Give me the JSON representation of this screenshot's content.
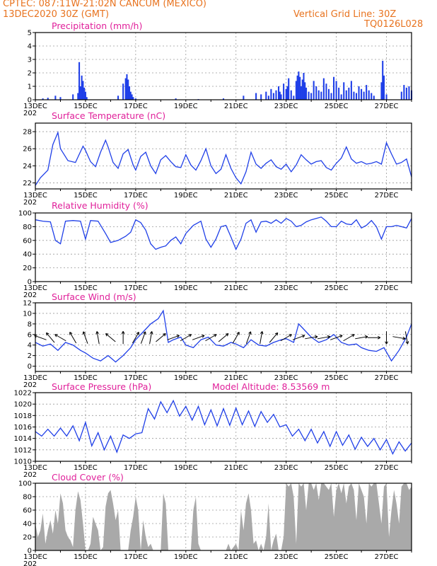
{
  "header": {
    "line1": "CPTEC:   087:11W-21:02N   CANCUM (MEXICO)",
    "line2": "13DEC2020 30Z (GMT)",
    "grid_note": "Vertical Grid Line: 30Z",
    "code": "TQ0126L028"
  },
  "colors": {
    "header_text": "#e8731f",
    "title_text": "#e0209a",
    "line_series": "#1f3fe8",
    "precip_bars": "#1f3fe8",
    "cloud_bars": "#a9a9a9",
    "grid": "#9a9a9a"
  },
  "x_axis": {
    "tick_labels": [
      "13DEC",
      "15DEC",
      "17DEC",
      "19DEC",
      "21DEC",
      "23DEC",
      "25DEC",
      "27DEC"
    ],
    "partial_year_label": "202",
    "start_day": 13,
    "end_day": 28
  },
  "chart_data": [
    {
      "id": "precip",
      "type": "bar",
      "title": "Precipitation (mm/h)",
      "ylim": [
        0,
        5
      ],
      "yticks": [
        0,
        1,
        2,
        3,
        4,
        5
      ],
      "grid": true,
      "x_unit": "day of December 2020",
      "x": [
        13.3,
        13.5,
        13.8,
        14.0,
        14.5,
        14.7,
        14.75,
        14.8,
        14.85,
        14.9,
        14.95,
        15.0,
        15.05,
        16.3,
        16.5,
        16.6,
        16.65,
        16.7,
        16.75,
        16.8,
        16.85,
        16.9,
        17.0,
        18.6,
        19.5,
        20.5,
        21.3,
        21.8,
        22.0,
        22.2,
        22.3,
        22.4,
        22.5,
        22.6,
        22.7,
        22.75,
        22.8,
        22.9,
        23.0,
        23.05,
        23.1,
        23.2,
        23.3,
        23.4,
        23.45,
        23.5,
        23.55,
        23.6,
        23.65,
        23.7,
        23.75,
        23.8,
        23.9,
        24.0,
        24.1,
        24.2,
        24.3,
        24.4,
        24.5,
        24.6,
        24.7,
        24.8,
        24.9,
        25.0,
        25.1,
        25.2,
        25.3,
        25.4,
        25.5,
        25.6,
        25.7,
        25.8,
        25.9,
        26.0,
        26.1,
        26.2,
        26.3,
        26.4,
        26.5,
        26.8,
        26.85,
        26.9,
        27.0,
        27.6,
        27.7,
        27.8,
        27.9,
        28.0
      ],
      "values": [
        0.1,
        0.15,
        0.3,
        0.2,
        0.4,
        0.5,
        2.8,
        1.0,
        1.8,
        1.4,
        0.9,
        0.6,
        0.2,
        0.3,
        1.2,
        1.6,
        1.9,
        1.5,
        1.0,
        0.6,
        0.4,
        0.2,
        0.1,
        0.1,
        0.05,
        0.1,
        0.3,
        0.5,
        0.4,
        0.6,
        0.3,
        0.8,
        0.5,
        0.7,
        1.0,
        0.6,
        0.4,
        1.2,
        0.8,
        1.0,
        1.6,
        0.7,
        0.3,
        1.4,
        1.8,
        2.1,
        1.7,
        1.0,
        1.5,
        2.0,
        1.3,
        0.9,
        0.6,
        0.5,
        1.4,
        1.0,
        0.7,
        0.6,
        1.6,
        1.2,
        0.8,
        0.5,
        1.7,
        1.4,
        0.9,
        0.4,
        1.3,
        0.7,
        0.9,
        1.4,
        0.6,
        0.5,
        1.0,
        0.8,
        0.6,
        1.1,
        0.7,
        0.5,
        0.3,
        1.3,
        2.9,
        1.8,
        0.4,
        0.6,
        1.1,
        0.9,
        1.0,
        0.7
      ]
    },
    {
      "id": "temp",
      "type": "line",
      "title": "Surface Temperature (nC)",
      "ylim": [
        21.3,
        29
      ],
      "yticks": [
        22,
        24,
        26,
        28
      ],
      "grid": true,
      "x_unit": "day of December 2020",
      "x": [
        13.0,
        13.2,
        13.5,
        13.7,
        13.9,
        14.0,
        14.3,
        14.6,
        14.9,
        15.0,
        15.2,
        15.4,
        15.6,
        15.8,
        15.9,
        16.1,
        16.3,
        16.5,
        16.7,
        16.9,
        17.0,
        17.2,
        17.4,
        17.6,
        17.8,
        18.0,
        18.2,
        18.4,
        18.6,
        18.8,
        19.0,
        19.2,
        19.4,
        19.6,
        19.8,
        20.0,
        20.2,
        20.4,
        20.6,
        20.8,
        21.0,
        21.2,
        21.4,
        21.6,
        21.8,
        22.0,
        22.2,
        22.4,
        22.6,
        22.8,
        23.0,
        23.2,
        23.4,
        23.6,
        23.8,
        24.0,
        24.2,
        24.4,
        24.6,
        24.8,
        25.0,
        25.2,
        25.4,
        25.6,
        25.8,
        26.0,
        26.2,
        26.4,
        26.6,
        26.8,
        27.0,
        27.2,
        27.4,
        27.6,
        27.8,
        28.0
      ],
      "values": [
        21.7,
        22.6,
        23.5,
        26.5,
        27.9,
        26.0,
        24.6,
        24.4,
        26.3,
        25.8,
        24.5,
        23.9,
        25.6,
        27.0,
        26.2,
        24.4,
        23.7,
        25.4,
        25.9,
        24.1,
        23.5,
        25.1,
        25.6,
        24.0,
        23.1,
        24.7,
        25.2,
        24.5,
        23.9,
        23.8,
        25.3,
        24.1,
        23.5,
        24.6,
        26.0,
        24.0,
        23.1,
        23.6,
        25.3,
        23.7,
        22.6,
        21.9,
        23.3,
        25.6,
        24.2,
        23.7,
        24.3,
        24.7,
        23.9,
        23.6,
        24.2,
        23.3,
        24.1,
        25.3,
        24.7,
        24.2,
        24.5,
        24.6,
        23.8,
        23.5,
        24.3,
        24.9,
        26.2,
        24.8,
        24.3,
        24.5,
        24.2,
        24.3,
        24.5,
        24.2,
        26.7,
        25.4,
        24.2,
        24.4,
        24.8,
        22.7
      ]
    },
    {
      "id": "rh",
      "type": "line",
      "title": "Relative Humidity (%)",
      "ylim": [
        0,
        100
      ],
      "yticks": [
        0,
        20,
        40,
        60,
        80,
        100
      ],
      "grid": true,
      "x_unit": "day of December 2020",
      "x": [
        13.0,
        13.3,
        13.6,
        13.8,
        14.0,
        14.2,
        14.5,
        14.8,
        15.0,
        15.2,
        15.5,
        15.8,
        16.0,
        16.3,
        16.6,
        16.8,
        17.0,
        17.2,
        17.4,
        17.6,
        17.8,
        18.0,
        18.2,
        18.4,
        18.6,
        18.8,
        19.0,
        19.3,
        19.6,
        19.8,
        20.0,
        20.2,
        20.4,
        20.6,
        20.8,
        21.0,
        21.2,
        21.4,
        21.6,
        21.8,
        22.0,
        22.2,
        22.4,
        22.6,
        22.8,
        23.0,
        23.2,
        23.4,
        23.6,
        23.8,
        24.0,
        24.2,
        24.4,
        24.6,
        24.8,
        25.0,
        25.2,
        25.4,
        25.6,
        25.8,
        26.0,
        26.2,
        26.4,
        26.6,
        26.8,
        27.0,
        27.2,
        27.4,
        27.6,
        27.8,
        28.0
      ],
      "values": [
        90,
        88,
        87,
        60,
        55,
        88,
        89,
        88,
        62,
        89,
        88,
        70,
        57,
        60,
        66,
        72,
        90,
        86,
        75,
        55,
        47,
        50,
        52,
        60,
        65,
        55,
        70,
        82,
        88,
        62,
        50,
        62,
        80,
        82,
        65,
        47,
        62,
        85,
        90,
        72,
        87,
        88,
        85,
        90,
        85,
        92,
        88,
        80,
        82,
        87,
        90,
        92,
        94,
        88,
        80,
        80,
        88,
        84,
        83,
        90,
        78,
        82,
        89,
        80,
        62,
        80,
        80,
        82,
        80,
        78,
        92
      ]
    },
    {
      "id": "wind",
      "type": "line",
      "title": "Surface Wind (m/s)",
      "ylim": [
        -1,
        12
      ],
      "yticks": [
        0,
        2,
        4,
        6,
        8,
        10,
        12
      ],
      "grid": true,
      "x_unit": "day of December 2020",
      "x": [
        13.0,
        13.3,
        13.6,
        13.9,
        14.2,
        14.5,
        14.8,
        15.0,
        15.3,
        15.6,
        15.9,
        16.2,
        16.5,
        16.8,
        17.0,
        17.3,
        17.6,
        17.9,
        18.1,
        18.3,
        18.5,
        18.8,
        19.0,
        19.3,
        19.6,
        19.9,
        20.2,
        20.5,
        20.8,
        21.0,
        21.3,
        21.6,
        21.9,
        22.2,
        22.5,
        22.8,
        23.0,
        23.3,
        23.5,
        23.8,
        24.0,
        24.3,
        24.6,
        24.9,
        25.2,
        25.5,
        25.8,
        26.0,
        26.3,
        26.6,
        26.9,
        27.2,
        27.5,
        27.8,
        28.0
      ],
      "values": [
        4.5,
        3.8,
        4.2,
        3.0,
        4.5,
        4.0,
        3.0,
        2.5,
        1.5,
        1.0,
        2.0,
        0.8,
        2.0,
        3.5,
        5.0,
        6.5,
        8.0,
        9.0,
        10.5,
        4.5,
        5.0,
        5.5,
        4.0,
        3.5,
        5.0,
        5.5,
        4.0,
        3.8,
        4.5,
        4.2,
        3.5,
        5.0,
        4.0,
        3.8,
        4.5,
        5.0,
        5.2,
        4.5,
        8.0,
        6.5,
        5.5,
        4.5,
        5.0,
        6.0,
        4.5,
        4.0,
        4.2,
        3.5,
        3.0,
        2.8,
        3.5,
        1.0,
        3.0,
        5.5,
        8.0
      ],
      "barbs": {
        "x": [
          13.2,
          13.6,
          14.0,
          14.5,
          15.0,
          15.5,
          16.0,
          16.5,
          17.0,
          17.3,
          17.6,
          18.0,
          18.5,
          19.0,
          19.5,
          20.0,
          20.5,
          21.0,
          21.5,
          22.0,
          22.5,
          23.0,
          23.5,
          24.0,
          24.5,
          25.0,
          25.5,
          26.0,
          26.5,
          27.0,
          27.5,
          27.8
        ],
        "angle_deg": [
          160,
          130,
          150,
          120,
          110,
          100,
          140,
          90,
          60,
          70,
          80,
          40,
          20,
          30,
          20,
          30,
          40,
          60,
          70,
          80,
          50,
          30,
          20,
          10,
          10,
          20,
          30,
          10,
          0,
          -90,
          -10,
          -80
        ]
      }
    },
    {
      "id": "pres",
      "type": "line",
      "title": "Surface Pressure (hPa)",
      "annotation": "Model Altitude: 8.53569 m",
      "ylim": [
        1010,
        1022
      ],
      "yticks": [
        1010,
        1012,
        1014,
        1016,
        1018,
        1020,
        1022
      ],
      "grid": true,
      "x_unit": "day of December 2020",
      "x": [
        13.0,
        13.25,
        13.5,
        13.75,
        14.0,
        14.25,
        14.5,
        14.75,
        15.0,
        15.25,
        15.5,
        15.75,
        16.0,
        16.25,
        16.5,
        16.75,
        17.0,
        17.25,
        17.5,
        17.75,
        18.0,
        18.25,
        18.5,
        18.75,
        19.0,
        19.25,
        19.5,
        19.75,
        20.0,
        20.25,
        20.5,
        20.75,
        21.0,
        21.25,
        21.5,
        21.75,
        22.0,
        22.25,
        22.5,
        22.75,
        23.0,
        23.25,
        23.5,
        23.75,
        24.0,
        24.25,
        24.5,
        24.75,
        25.0,
        25.25,
        25.5,
        25.75,
        26.0,
        26.25,
        26.5,
        26.75,
        27.0,
        27.25,
        27.5,
        27.75,
        28.0
      ],
      "values": [
        1015.2,
        1014.4,
        1015.6,
        1014.4,
        1015.8,
        1014.4,
        1016.2,
        1013.6,
        1016.8,
        1012.7,
        1015.0,
        1012.0,
        1014.4,
        1011.6,
        1014.6,
        1014.0,
        1014.8,
        1015.0,
        1019.2,
        1017.4,
        1020.4,
        1018.5,
        1020.6,
        1017.9,
        1019.6,
        1017.2,
        1019.6,
        1016.4,
        1019.0,
        1016.2,
        1019.2,
        1016.3,
        1019.3,
        1016.4,
        1018.8,
        1016.1,
        1018.7,
        1016.8,
        1018.2,
        1016.0,
        1016.4,
        1014.4,
        1015.6,
        1013.6,
        1015.6,
        1013.2,
        1015.2,
        1012.6,
        1015.2,
        1012.8,
        1014.6,
        1012.1,
        1014.2,
        1012.6,
        1014.0,
        1012.0,
        1013.8,
        1011.3,
        1013.4,
        1011.8,
        1013.2
      ]
    },
    {
      "id": "cloud",
      "type": "area",
      "title": "Cloud Cover (%)",
      "ylim": [
        0,
        100
      ],
      "yticks": [
        0,
        20,
        40,
        60,
        80,
        100
      ],
      "grid": true,
      "x_unit": "day of December 2020",
      "x": [
        13.0,
        13.1,
        13.2,
        13.3,
        13.4,
        13.5,
        13.6,
        13.7,
        13.8,
        13.9,
        14.0,
        14.1,
        14.2,
        14.3,
        14.4,
        14.5,
        14.6,
        14.7,
        14.8,
        14.9,
        15.0,
        15.1,
        15.2,
        15.3,
        15.4,
        15.5,
        15.6,
        15.7,
        15.8,
        15.9,
        16.0,
        16.1,
        16.2,
        16.3,
        16.4,
        16.5,
        16.6,
        16.7,
        16.8,
        16.9,
        17.0,
        17.1,
        17.2,
        17.3,
        17.4,
        17.5,
        17.6,
        17.7,
        17.8,
        17.9,
        18.0,
        18.1,
        18.2,
        18.3,
        18.4,
        18.5,
        18.6,
        18.7,
        18.8,
        18.9,
        19.0,
        19.1,
        19.2,
        19.3,
        19.4,
        19.5,
        19.6,
        19.7,
        19.8,
        19.9,
        20.0,
        20.1,
        20.2,
        20.3,
        20.4,
        20.5,
        20.6,
        20.7,
        20.8,
        20.9,
        21.0,
        21.1,
        21.2,
        21.3,
        21.4,
        21.5,
        21.6,
        21.7,
        21.8,
        21.9,
        22.0,
        22.1,
        22.2,
        22.3,
        22.4,
        22.5,
        22.6,
        22.7,
        22.8,
        22.9,
        23.0,
        23.1,
        23.2,
        23.3,
        23.4,
        23.5,
        23.6,
        23.7,
        23.8,
        23.9,
        24.0,
        24.1,
        24.2,
        24.3,
        24.4,
        24.5,
        24.6,
        24.7,
        24.8,
        24.9,
        25.0,
        25.1,
        25.2,
        25.3,
        25.4,
        25.5,
        25.6,
        25.7,
        25.8,
        25.9,
        26.0,
        26.1,
        26.2,
        26.3,
        26.4,
        26.5,
        26.6,
        26.7,
        26.8,
        26.9,
        27.0,
        27.1,
        27.2,
        27.3,
        27.4,
        27.5,
        27.6,
        27.7,
        27.8,
        27.9,
        28.0
      ],
      "values": [
        40,
        20,
        30,
        55,
        10,
        30,
        45,
        25,
        60,
        40,
        85,
        70,
        30,
        20,
        15,
        5,
        60,
        88,
        75,
        40,
        0,
        0,
        10,
        50,
        40,
        30,
        0,
        5,
        65,
        85,
        90,
        70,
        45,
        60,
        0,
        0,
        0,
        0,
        30,
        50,
        80,
        60,
        0,
        45,
        20,
        5,
        10,
        0,
        0,
        0,
        0,
        85,
        70,
        0,
        0,
        0,
        0,
        0,
        0,
        0,
        0,
        0,
        0,
        60,
        80,
        10,
        0,
        0,
        0,
        0,
        0,
        0,
        0,
        0,
        0,
        0,
        0,
        10,
        0,
        5,
        10,
        0,
        60,
        30,
        70,
        85,
        60,
        10,
        15,
        0,
        10,
        0,
        20,
        70,
        0,
        15,
        25,
        0,
        0,
        20,
        100,
        95,
        100,
        80,
        10,
        100,
        95,
        100,
        60,
        100,
        100,
        90,
        100,
        75,
        100,
        100,
        95,
        90,
        100,
        50,
        90,
        100,
        85,
        100,
        70,
        95,
        100,
        90,
        45,
        100,
        90,
        80,
        40,
        100,
        95,
        100,
        100,
        70,
        40,
        95,
        100,
        20,
        60,
        90,
        70,
        40,
        95,
        100,
        100,
        90,
        95
      ]
    }
  ]
}
